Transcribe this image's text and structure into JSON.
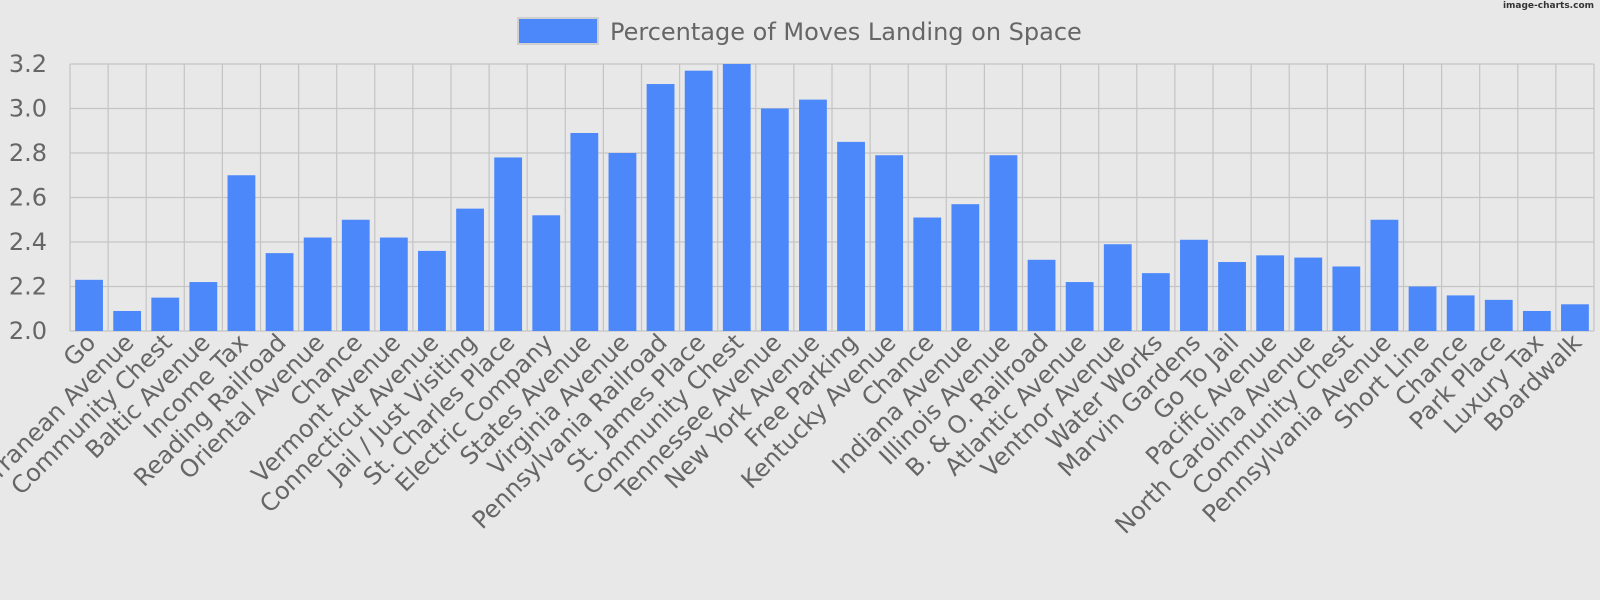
{
  "watermark": "image-charts.com",
  "colors": {
    "background": "#e8e8e8",
    "bar": "#4d88fb",
    "grid": "#c4c4c4",
    "text": "#666666"
  },
  "chart_data": {
    "type": "bar",
    "title": "",
    "xlabel": "",
    "ylabel": "",
    "legend": {
      "position": "top"
    },
    "grid": true,
    "ylim": [
      2.0,
      3.2
    ],
    "yticks": [
      "2.0",
      "2.2",
      "2.4",
      "2.6",
      "2.8",
      "3.0",
      "3.2"
    ],
    "categories": [
      "Go",
      "Mediterranean Avenue",
      "Community Chest",
      "Baltic Avenue",
      "Income Tax",
      "Reading Railroad",
      "Oriental Avenue",
      "Chance",
      "Vermont Avenue",
      "Connecticut Avenue",
      "Jail / Just Visiting",
      "St. Charles Place",
      "Electric Company",
      "States Avenue",
      "Virginia Avenue",
      "Pennsylvania Railroad",
      "St. James Place",
      "Community Chest",
      "Tennessee Avenue",
      "New York Avenue",
      "Free Parking",
      "Kentucky Avenue",
      "Chance",
      "Indiana Avenue",
      "Illinois Avenue",
      "B. & O. Railroad",
      "Atlantic Avenue",
      "Ventnor Avenue",
      "Water Works",
      "Marvin Gardens",
      "Go To Jail",
      "Pacific Avenue",
      "North Carolina Avenue",
      "Community Chest",
      "Pennsylvania Avenue",
      "Short Line",
      "Chance",
      "Park Place",
      "Luxury Tax",
      "Boardwalk"
    ],
    "series": [
      {
        "name": "Percentage of Moves Landing on Space",
        "values": [
          2.23,
          2.09,
          2.15,
          2.22,
          2.7,
          2.35,
          2.42,
          2.5,
          2.42,
          2.36,
          2.55,
          2.78,
          2.52,
          2.89,
          2.8,
          3.11,
          3.17,
          3.2,
          3.0,
          3.04,
          2.85,
          2.79,
          2.51,
          2.57,
          2.79,
          2.32,
          2.22,
          2.39,
          2.26,
          2.41,
          2.31,
          2.34,
          2.33,
          2.29,
          2.5,
          2.2,
          2.16,
          2.14,
          2.09,
          2.12
        ]
      }
    ]
  }
}
